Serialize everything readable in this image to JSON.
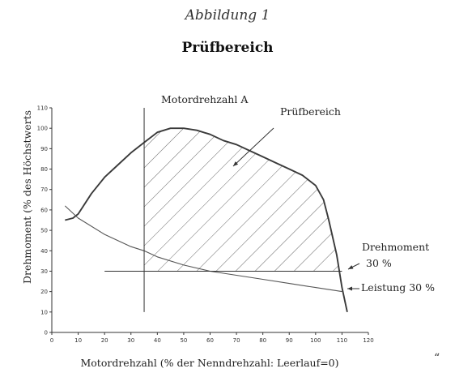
{
  "figure": {
    "caption": "Abbildung 1",
    "title": "Prüfbereich",
    "trailing_mark": "“"
  },
  "chart_data": {
    "type": "line",
    "title": "Prüfbereich",
    "xlabel": "Motordrehzahl (% der Nenndrehzahl: Leerlauf=0)",
    "ylabel": "Drehmoment (% des Höchstwerts",
    "xlim": [
      0,
      120
    ],
    "ylim": [
      0,
      110
    ],
    "x_ticks": [
      "0",
      "10",
      "20",
      "30",
      "40",
      "50",
      "60",
      "70",
      "80",
      "90",
      "100",
      "110",
      "120"
    ],
    "y_ticks": [
      "0",
      "10",
      "20",
      "30",
      "40",
      "50",
      "60",
      "70",
      "80",
      "90",
      "100",
      "110"
    ],
    "grid": false,
    "series": [
      {
        "name": "",
        "x": [
          5,
          8,
          10,
          15,
          20,
          25,
          30,
          35,
          40,
          45,
          50,
          55,
          60,
          65,
          70,
          75,
          80,
          85,
          90,
          95,
          100,
          103,
          105,
          108,
          110,
          112
        ],
        "y": [
          55,
          56,
          58,
          68,
          76,
          82,
          88,
          93,
          98,
          100,
          100,
          99,
          97,
          94,
          92,
          89,
          86,
          83,
          80,
          77,
          72,
          65,
          55,
          38,
          22,
          10
        ],
        "color": "#3a3a3a"
      },
      {
        "name": "Leistung",
        "x": [
          5,
          10,
          20,
          30,
          35,
          40,
          50,
          60,
          70,
          80,
          90,
          100,
          110
        ],
        "y": [
          62,
          56,
          48,
          42,
          40,
          37,
          33,
          30,
          28,
          26,
          24,
          22,
          20
        ],
        "color": "#555555"
      }
    ],
    "reference_lines": [
      {
        "orientation": "vertical",
        "x": 35,
        "y_range": [
          10,
          110
        ],
        "label": "Motordrehzahl A"
      },
      {
        "orientation": "horizontal",
        "y": 30,
        "x_range": [
          20,
          110
        ],
        "label": "Drehmoment 30 %"
      }
    ],
    "shaded_region": {
      "label": "Prüfbereich",
      "pattern": "diagonal hatch"
    },
    "annotations": [
      {
        "text": "Motordrehzahl A"
      },
      {
        "text": "Prüfbereich"
      },
      {
        "text": "Drehmoment"
      },
      {
        "text": "30 %"
      },
      {
        "text": "Leistung 30 %"
      }
    ]
  }
}
